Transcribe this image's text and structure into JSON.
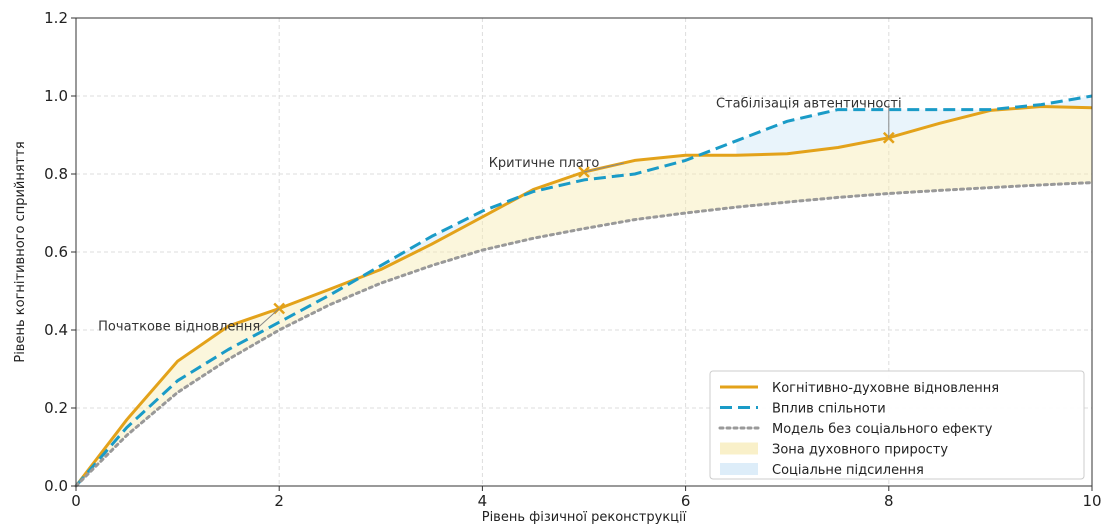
{
  "chart_data": {
    "type": "line",
    "title": "",
    "xlabel": "Рівень фізичної реконструкції",
    "ylabel": "Рівень когнітивного сприйняття",
    "xlim": [
      0,
      10
    ],
    "ylim": [
      0,
      1.2
    ],
    "x_ticks": [
      "0",
      "2",
      "4",
      "6",
      "8",
      "10"
    ],
    "y_ticks": [
      "0.0",
      "0.2",
      "0.4",
      "0.6",
      "0.8",
      "1.0",
      "1.2"
    ],
    "grid": true,
    "legend_position": "bottom-right",
    "series": [
      {
        "name": "Когнітивно-духовне відновлення",
        "style": "solid",
        "color": "#e3a21a",
        "x": [
          0,
          0.5,
          1,
          1.5,
          2,
          2.5,
          3,
          3.5,
          4,
          4.5,
          5,
          5.5,
          6,
          6.5,
          7,
          7.5,
          8,
          8.5,
          9,
          9.5,
          10
        ],
        "y": [
          0.0,
          0.17,
          0.32,
          0.41,
          0.455,
          0.505,
          0.555,
          0.62,
          0.69,
          0.76,
          0.805,
          0.835,
          0.848,
          0.848,
          0.852,
          0.868,
          0.893,
          0.93,
          0.963,
          0.973,
          0.97
        ]
      },
      {
        "name": "Вплив спільноти",
        "style": "dashed",
        "color": "#1a9bc7",
        "x": [
          0,
          0.5,
          1,
          1.5,
          2,
          2.5,
          3,
          3.5,
          4,
          4.5,
          5,
          5.5,
          6,
          6.5,
          7,
          7.5,
          8,
          8.5,
          9,
          9.5,
          10
        ],
        "y": [
          0.0,
          0.15,
          0.27,
          0.35,
          0.42,
          0.49,
          0.565,
          0.64,
          0.705,
          0.755,
          0.785,
          0.8,
          0.835,
          0.885,
          0.935,
          0.965,
          0.965,
          0.965,
          0.965,
          0.978,
          1.0
        ]
      },
      {
        "name": "Модель без соціального ефекту",
        "style": "dotted",
        "color": "#999999",
        "x": [
          0,
          0.5,
          1,
          1.5,
          2,
          2.5,
          3,
          3.5,
          4,
          4.5,
          5,
          5.5,
          6,
          6.5,
          7,
          7.5,
          8,
          8.5,
          9,
          9.5,
          10
        ],
        "y": [
          0.0,
          0.13,
          0.24,
          0.325,
          0.4,
          0.465,
          0.52,
          0.565,
          0.605,
          0.635,
          0.66,
          0.683,
          0.7,
          0.715,
          0.728,
          0.74,
          0.75,
          0.758,
          0.765,
          0.772,
          0.778
        ]
      }
    ],
    "fills": [
      {
        "name": "Зона духовного приросту",
        "between": [
          "Когнітивно-духовне відновлення",
          "Модель без соціального ефекту"
        ],
        "color": "#f7eab2",
        "opacity": 0.45
      },
      {
        "name": "Соціальне підсилення",
        "between": [
          "Когнітивно-духовне відновлення",
          "Вплив спільноти"
        ],
        "where": "Вплив спільноти above",
        "color": "#cfe6f7",
        "opacity": 0.45
      }
    ],
    "annotations": [
      {
        "text": "Початкове відновлення",
        "point": [
          2,
          0.455
        ]
      },
      {
        "text": "Критичне плато",
        "point": [
          5,
          0.805
        ]
      },
      {
        "text": "Стабілізація автентичності",
        "point": [
          8,
          0.893
        ]
      }
    ]
  }
}
